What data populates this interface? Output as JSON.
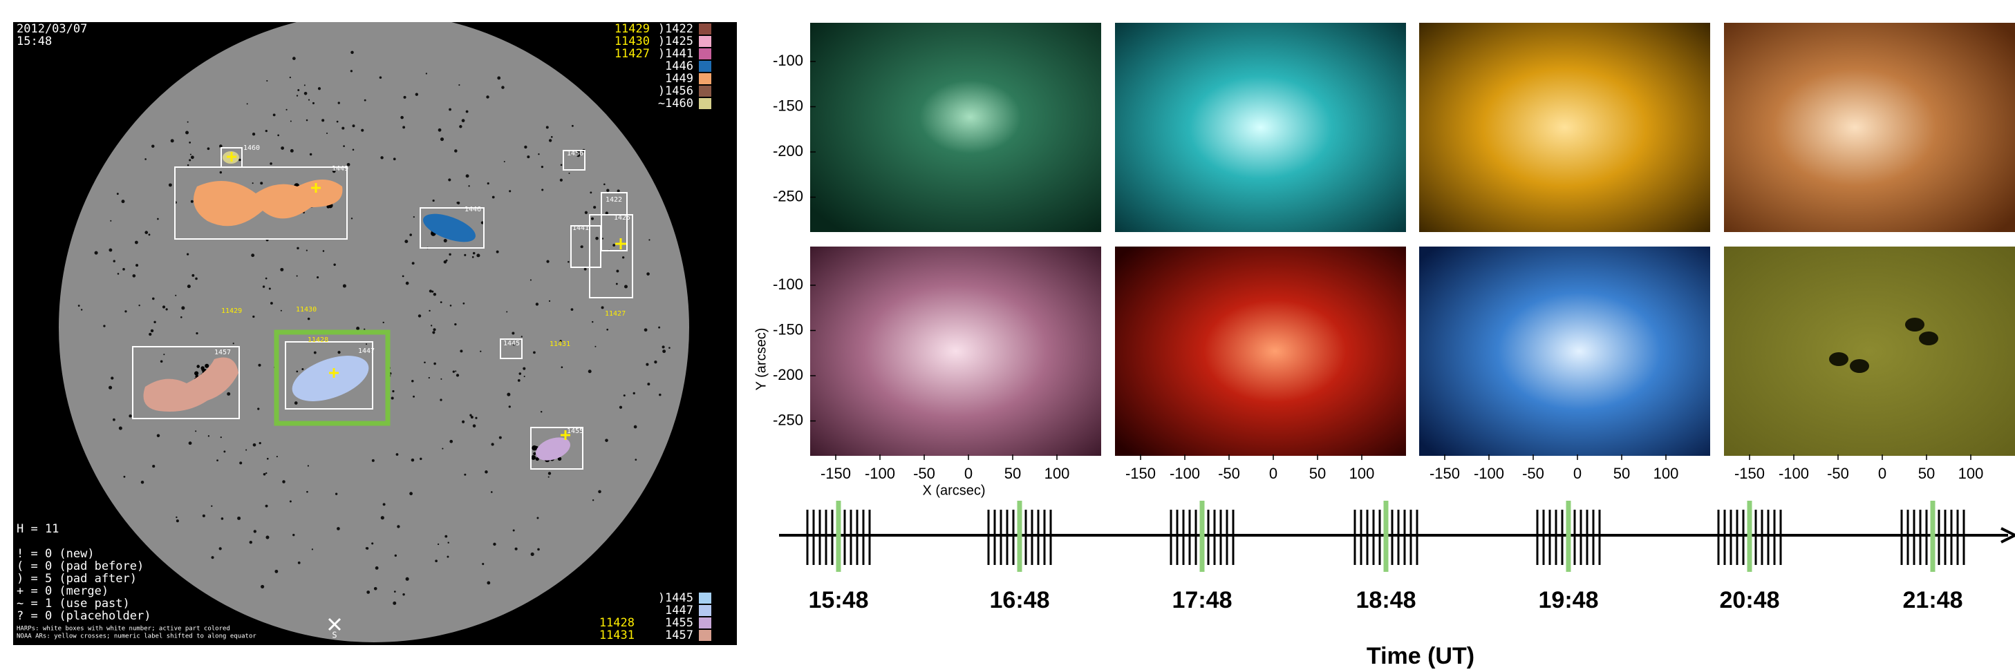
{
  "solar_disk": {
    "date": "2012/03/07",
    "time": "15:48",
    "noaa_top": [
      "11429",
      "11430",
      "11427"
    ],
    "legend_top": [
      {
        "label": ")1422",
        "color": "#8c4a3e"
      },
      {
        "label": ")1425",
        "color": "#f0a8c8"
      },
      {
        "label": ")1441",
        "color": "#c8609c"
      },
      {
        "label": "1446",
        "color": "#1f6db3"
      },
      {
        "label": "1449",
        "color": "#f2a36a"
      },
      {
        "label": ")1456",
        "color": "#8a5846"
      },
      {
        "label": "~1460",
        "color": "#d6d08c"
      }
    ],
    "legend_bottom": [
      {
        "label": ")1445",
        "color": "#a6d0f2"
      },
      {
        "label": "1447",
        "color": "#b4c8f0"
      },
      {
        "label": "1455",
        "color": "#c8a8d8"
      },
      {
        "label": "1457",
        "color": "#d8a090"
      }
    ],
    "noaa_bottom": [
      "11428",
      "11431"
    ],
    "harp_labels": [
      "1460",
      "1449",
      "1446",
      "1456",
      "1441",
      "1422",
      "1425",
      "1457",
      "1447",
      "1445",
      "1455"
    ],
    "noaa_labels": [
      "11429",
      "11430",
      "11427",
      "11428",
      "11431"
    ],
    "stats": [
      "H = 11",
      "! = 0 (new)",
      "( = 0 (pad before)",
      ") = 5 (pad after)",
      "+ = 0 (merge)",
      "~ = 1 (use past)",
      "? = 0 (placeholder)"
    ],
    "footnotes": [
      "HARPs: white boxes with white number; active part colored",
      "NOAA ARs: yellow crosses; numeric label shifted to along equator"
    ],
    "pole": "S"
  },
  "image_grid": {
    "y_label": "Y (arcsec)",
    "x_label": "X (arcsec)",
    "y_ticks": [
      -100,
      -150,
      -200,
      -250
    ],
    "x_ticks": [
      -150,
      -100,
      -50,
      0,
      50,
      100
    ]
  },
  "timeline": {
    "times": [
      "15:48",
      "16:48",
      "17:48",
      "18:48",
      "19:48",
      "20:48",
      "21:48"
    ],
    "axis_label": "Time (UT)"
  }
}
